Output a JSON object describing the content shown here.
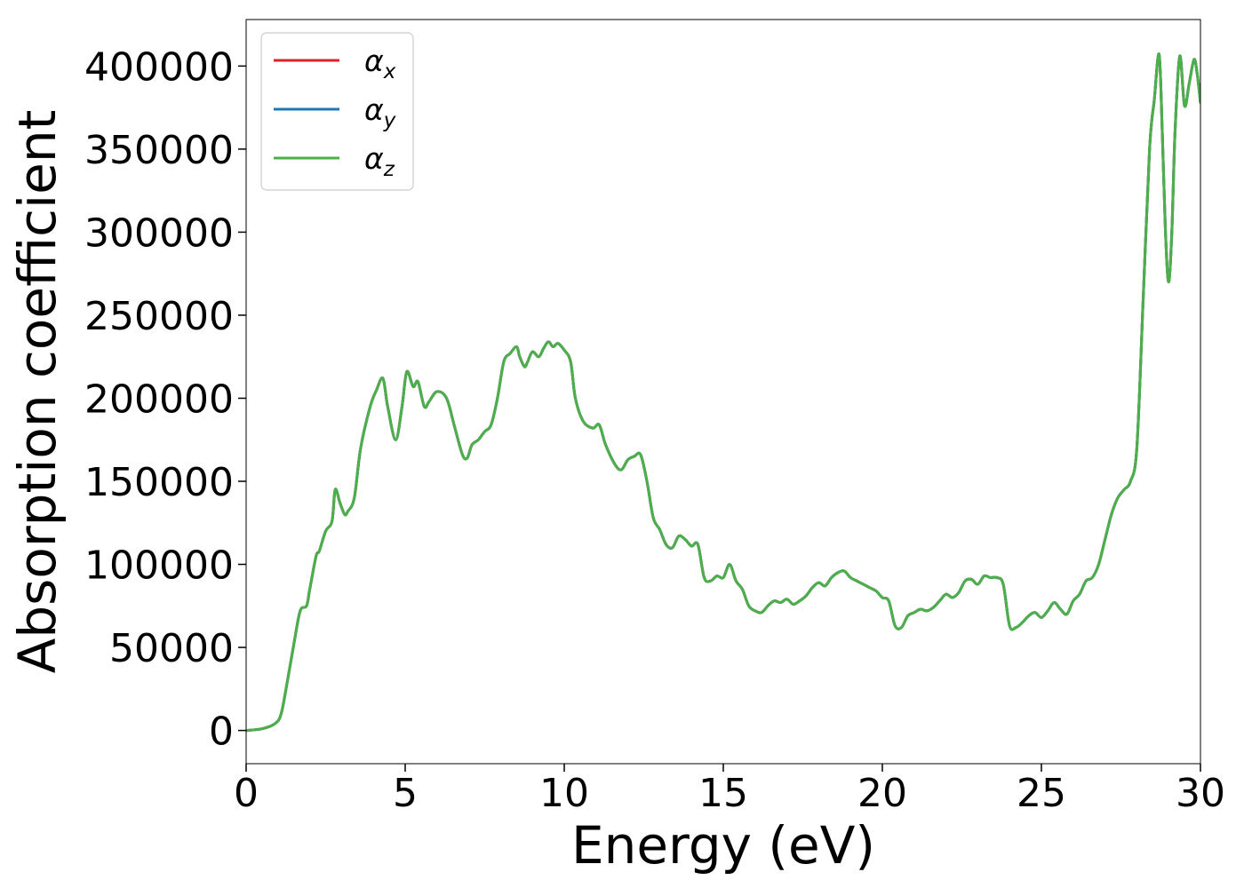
{
  "chart_data": {
    "type": "line",
    "title": "",
    "xlabel": "Energy (eV)",
    "ylabel": "Absorption coefficient",
    "xlim": [
      0,
      30
    ],
    "ylim": [
      -20000,
      428000
    ],
    "xticks": [
      0,
      5,
      10,
      15,
      20,
      25,
      30
    ],
    "yticks": [
      0,
      50000,
      100000,
      150000,
      200000,
      250000,
      300000,
      350000,
      400000
    ],
    "grid": false,
    "legend_position": "top-left",
    "series": [
      {
        "name": "αx",
        "base": "α",
        "sub": "x",
        "color": "#d62728"
      },
      {
        "name": "αy",
        "base": "α",
        "sub": "y",
        "color": "#1f77b4"
      },
      {
        "name": "αz",
        "base": "α",
        "sub": "z",
        "color": "#4daf4a"
      }
    ],
    "x": [
      0,
      0.5,
      0.9,
      1.1,
      1.3,
      1.5,
      1.7,
      1.9,
      2.0,
      2.2,
      2.3,
      2.5,
      2.7,
      2.8,
      2.95,
      3.1,
      3.2,
      3.4,
      3.6,
      3.9,
      4.1,
      4.3,
      4.45,
      4.7,
      4.9,
      5.05,
      5.25,
      5.4,
      5.6,
      5.75,
      6.0,
      6.3,
      6.55,
      6.8,
      6.95,
      7.1,
      7.3,
      7.5,
      7.7,
      7.9,
      8.1,
      8.3,
      8.5,
      8.6,
      8.75,
      8.85,
      9.0,
      9.2,
      9.35,
      9.5,
      9.65,
      9.8,
      10.0,
      10.2,
      10.35,
      10.6,
      10.9,
      11.1,
      11.3,
      11.6,
      11.8,
      12.0,
      12.2,
      12.4,
      12.6,
      12.8,
      13.0,
      13.2,
      13.4,
      13.6,
      13.8,
      14.0,
      14.2,
      14.4,
      14.6,
      14.8,
      15.0,
      15.2,
      15.4,
      15.6,
      15.8,
      16.0,
      16.2,
      16.4,
      16.6,
      16.8,
      17.0,
      17.2,
      17.4,
      17.6,
      17.8,
      18.0,
      18.2,
      18.4,
      18.6,
      18.8,
      19.0,
      19.2,
      19.4,
      19.6,
      19.8,
      20.0,
      20.2,
      20.4,
      20.6,
      20.8,
      21.0,
      21.2,
      21.4,
      21.6,
      21.8,
      22.0,
      22.2,
      22.4,
      22.6,
      22.8,
      23.0,
      23.2,
      23.4,
      23.6,
      23.8,
      24.0,
      24.2,
      24.4,
      24.6,
      24.8,
      25.0,
      25.2,
      25.4,
      25.6,
      25.8,
      26.0,
      26.2,
      26.4,
      26.6,
      26.8,
      27.0,
      27.2,
      27.4,
      27.6,
      27.8,
      28.0,
      28.2,
      28.4,
      28.55,
      28.7,
      28.8,
      28.9,
      29.0,
      29.1,
      29.2,
      29.35,
      29.5,
      29.65,
      29.8,
      29.9,
      30.0
    ],
    "values": [
      0,
      1000,
      4000,
      10000,
      30000,
      52000,
      72000,
      75000,
      85000,
      105000,
      108000,
      120000,
      126000,
      145000,
      137000,
      130000,
      132000,
      140000,
      170000,
      195000,
      205000,
      212000,
      195000,
      175000,
      195000,
      216000,
      207000,
      210000,
      195000,
      198000,
      204000,
      200000,
      183000,
      166000,
      164000,
      172000,
      175000,
      180000,
      184000,
      200000,
      222000,
      227000,
      231000,
      225000,
      219000,
      222000,
      228000,
      225000,
      230000,
      234000,
      231000,
      233000,
      229000,
      222000,
      200000,
      186000,
      182000,
      184000,
      172000,
      160000,
      157000,
      163000,
      165000,
      166000,
      150000,
      128000,
      121000,
      112000,
      110000,
      117000,
      115000,
      111000,
      112000,
      92000,
      90000,
      93000,
      92000,
      100000,
      90000,
      85000,
      75000,
      72000,
      71000,
      75000,
      78000,
      77000,
      79000,
      76000,
      78000,
      81000,
      86000,
      89000,
      87000,
      92000,
      95000,
      96000,
      92000,
      90000,
      88000,
      86000,
      84000,
      80000,
      78000,
      63000,
      62000,
      69000,
      71000,
      73000,
      72000,
      74000,
      78000,
      82000,
      80000,
      83000,
      90000,
      91000,
      88000,
      93000,
      92000,
      92000,
      88000,
      63000,
      62000,
      65000,
      69000,
      71000,
      68000,
      72000,
      77000,
      73000,
      70000,
      78000,
      82000,
      90000,
      92000,
      100000,
      115000,
      130000,
      140000,
      145000,
      150000,
      170000,
      260000,
      350000,
      380000,
      407000,
      360000,
      300000,
      270000,
      300000,
      360000,
      406000,
      376000,
      390000,
      404000,
      395000,
      378000
    ]
  }
}
